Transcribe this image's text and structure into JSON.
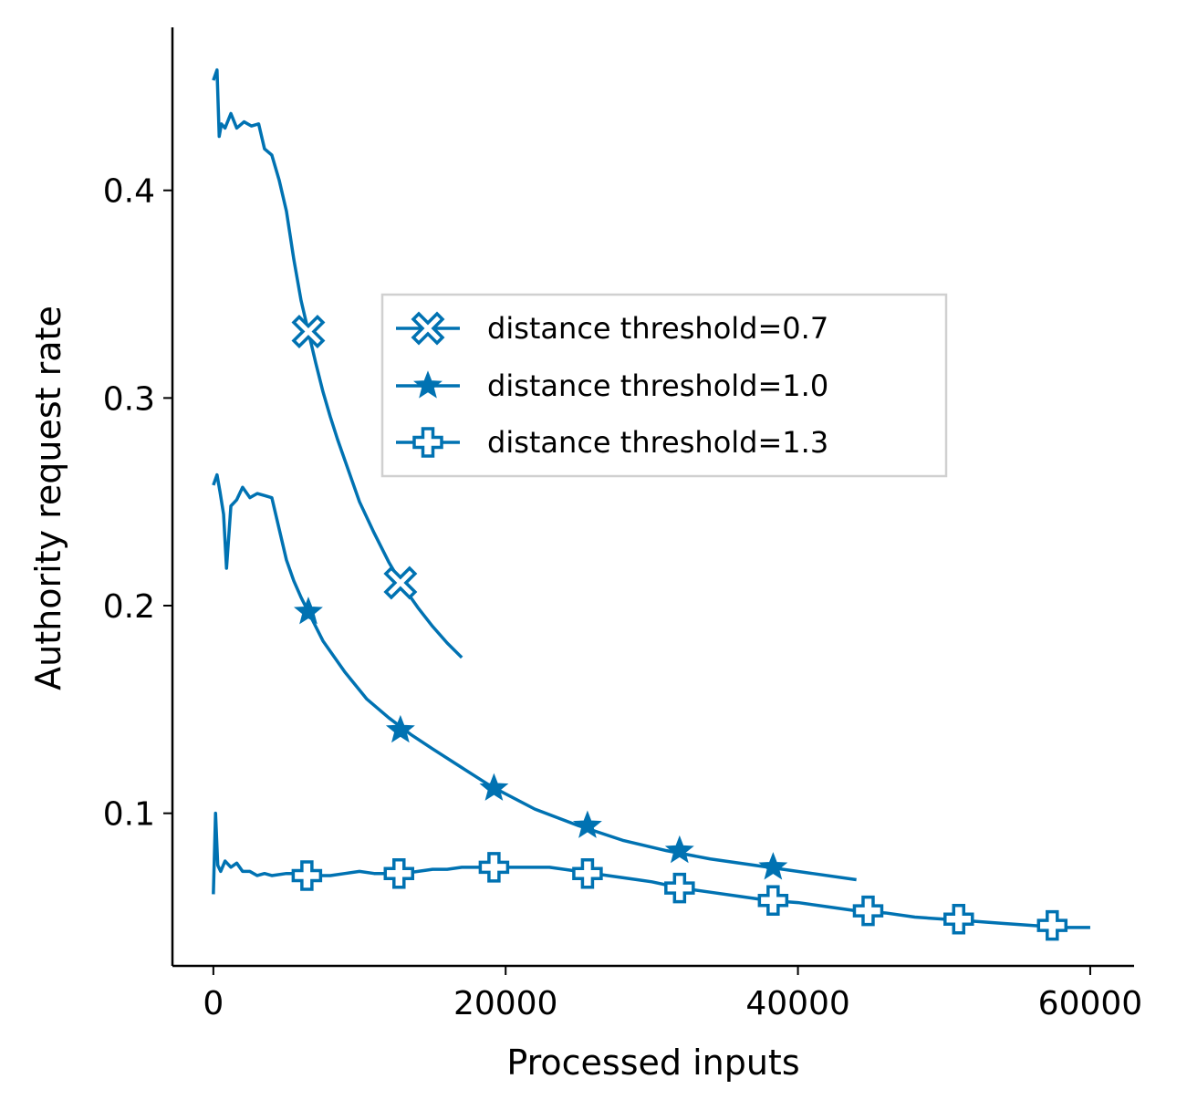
{
  "chart_data": {
    "type": "line",
    "xlabel": "Processed inputs",
    "ylabel": "Authority request rate",
    "xlim": [
      -2800,
      63000
    ],
    "ylim": [
      0.0265,
      0.4785
    ],
    "x_ticks": [
      0,
      20000,
      40000,
      60000
    ],
    "x_tick_labels": [
      "0",
      "20000",
      "40000",
      "60000"
    ],
    "y_ticks": [
      0.1,
      0.2,
      0.3,
      0.4
    ],
    "y_tick_labels": [
      "0.1",
      "0.2",
      "0.3",
      "0.4"
    ],
    "grid": false,
    "legend_position": "center-right",
    "line_color": "#0072b2",
    "series": [
      {
        "name": "distance threshold=0.7",
        "marker": "x-open",
        "x": [
          0,
          250,
          400,
          550,
          800,
          1200,
          1600,
          2100,
          2600,
          3100,
          3500,
          4000,
          4500,
          5000,
          5500,
          6000,
          6500,
          7000,
          7500,
          8000,
          8500,
          9000,
          9500,
          10000,
          11000,
          12000,
          13000,
          14000,
          15000,
          16000,
          17000
        ],
        "y": [
          0.453,
          0.458,
          0.426,
          0.432,
          0.43,
          0.437,
          0.43,
          0.433,
          0.431,
          0.432,
          0.42,
          0.417,
          0.405,
          0.39,
          0.367,
          0.347,
          0.332,
          0.317,
          0.303,
          0.291,
          0.28,
          0.27,
          0.26,
          0.25,
          0.235,
          0.221,
          0.209,
          0.199,
          0.19,
          0.182,
          0.175
        ],
        "marker_x": [
          6500,
          12800
        ],
        "marker_y": [
          0.332,
          0.211
        ]
      },
      {
        "name": "distance threshold=1.0",
        "marker": "star",
        "x": [
          0,
          250,
          450,
          700,
          900,
          1200,
          1600,
          2000,
          2500,
          3000,
          3500,
          4000,
          4500,
          5000,
          5500,
          6000,
          6500,
          7500,
          9000,
          10500,
          12000,
          13500,
          15000,
          17000,
          19000,
          22000,
          25000,
          28000,
          31000,
          34000,
          38000,
          41000,
          44000
        ],
        "y": [
          0.258,
          0.263,
          0.255,
          0.244,
          0.218,
          0.248,
          0.251,
          0.257,
          0.252,
          0.254,
          0.253,
          0.252,
          0.237,
          0.222,
          0.212,
          0.204,
          0.197,
          0.183,
          0.168,
          0.155,
          0.146,
          0.138,
          0.131,
          0.122,
          0.113,
          0.102,
          0.094,
          0.087,
          0.082,
          0.078,
          0.074,
          0.071,
          0.068
        ],
        "marker_x": [
          6500,
          12800,
          19200,
          25600,
          31900,
          38300
        ],
        "marker_y": [
          0.197,
          0.14,
          0.112,
          0.094,
          0.082,
          0.074
        ]
      },
      {
        "name": "distance threshold=1.3",
        "marker": "plus-open",
        "x": [
          0,
          150,
          300,
          500,
          800,
          1200,
          1600,
          2000,
          2500,
          3000,
          3500,
          4000,
          5000,
          6000,
          7000,
          8000,
          9000,
          10000,
          11000,
          12000,
          13000,
          14000,
          15000,
          16000,
          17000,
          18000,
          19000,
          20000,
          21000,
          22000,
          23000,
          24000,
          25000,
          26000,
          27000,
          28000,
          29000,
          30000,
          32000,
          34000,
          36000,
          38000,
          40000,
          42000,
          44000,
          46000,
          48000,
          50000,
          52000,
          54000,
          56000,
          58000,
          60000
        ],
        "y": [
          0.061,
          0.1,
          0.075,
          0.072,
          0.077,
          0.074,
          0.076,
          0.072,
          0.072,
          0.07,
          0.071,
          0.07,
          0.071,
          0.071,
          0.07,
          0.07,
          0.071,
          0.072,
          0.071,
          0.071,
          0.071,
          0.072,
          0.073,
          0.073,
          0.074,
          0.074,
          0.074,
          0.074,
          0.074,
          0.074,
          0.074,
          0.073,
          0.072,
          0.071,
          0.07,
          0.069,
          0.068,
          0.067,
          0.064,
          0.062,
          0.06,
          0.058,
          0.057,
          0.055,
          0.053,
          0.052,
          0.05,
          0.049,
          0.048,
          0.047,
          0.046,
          0.045,
          0.045
        ],
        "marker_x": [
          6400,
          12700,
          19200,
          25600,
          31900,
          38300,
          44800,
          51000,
          57400
        ],
        "marker_y": [
          0.07,
          0.071,
          0.074,
          0.071,
          0.064,
          0.058,
          0.053,
          0.049,
          0.046
        ]
      }
    ]
  }
}
